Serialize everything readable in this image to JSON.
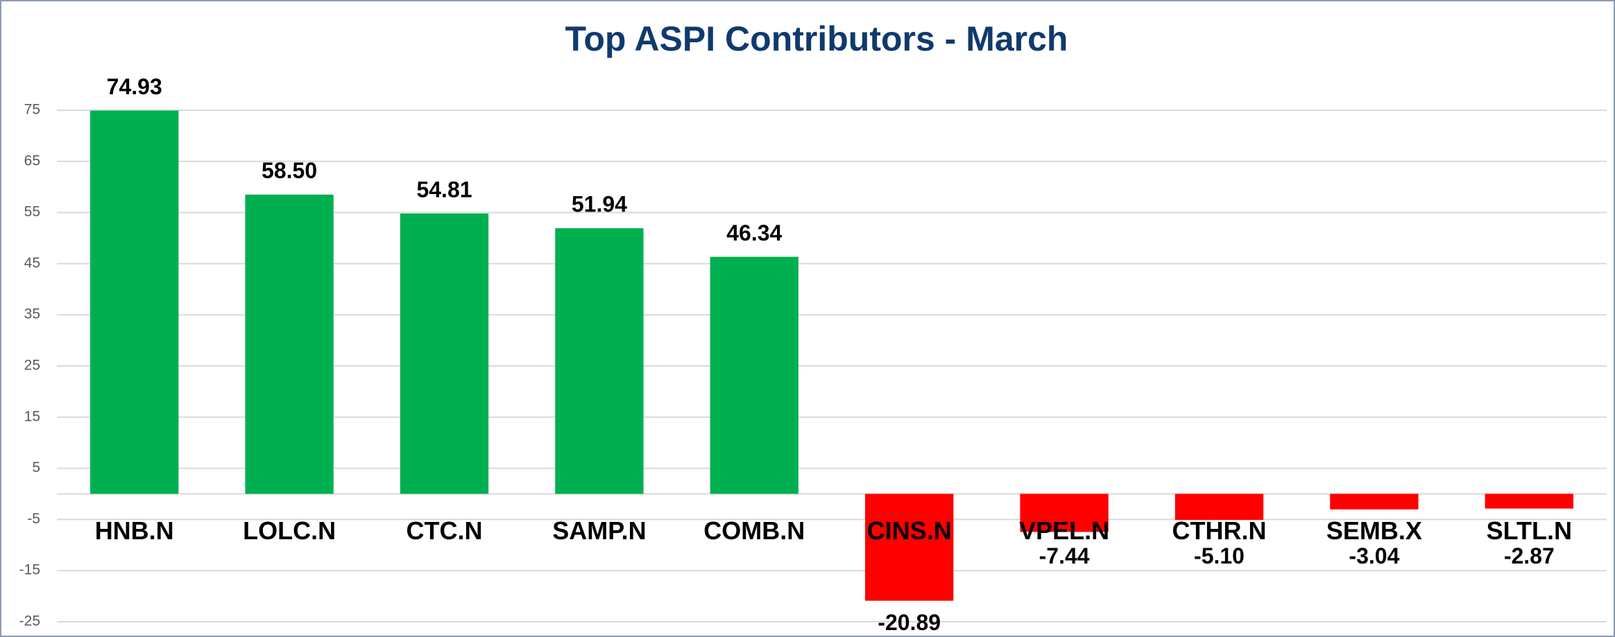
{
  "chart_data": {
    "type": "bar",
    "title": "Top ASPI Contributors - March",
    "categories": [
      "HNB.N",
      "LOLC.N",
      "CTC.N",
      "SAMP.N",
      "COMB.N",
      "CINS.N",
      "VPEL.N",
      "CTHR.N",
      "SEMB.X",
      "SLTL.N"
    ],
    "values": [
      74.93,
      58.5,
      54.81,
      51.94,
      46.34,
      -20.89,
      -7.44,
      -5.1,
      -3.04,
      -2.87
    ],
    "value_labels": [
      "74.93",
      "58.50",
      "54.81",
      "51.94",
      "46.34",
      "-20.89",
      "-7.44",
      "-5.10",
      "-3.04",
      "-2.87"
    ],
    "colors": [
      "#00b050",
      "#00b050",
      "#00b050",
      "#00b050",
      "#00b050",
      "#ff0000",
      "#ff0000",
      "#ff0000",
      "#ff0000",
      "#ff0000"
    ],
    "ylim": [
      -25,
      75
    ],
    "yticks": [
      -25,
      -15,
      -5,
      5,
      15,
      25,
      35,
      45,
      55,
      65,
      75
    ],
    "grid": true
  }
}
